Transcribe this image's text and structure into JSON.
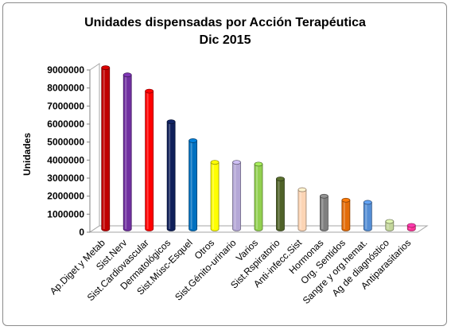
{
  "chart_data": {
    "type": "bar",
    "title": "Unidades dispensadas por Acción Terapéutica",
    "subtitle": "Dic 2015",
    "xlabel": "",
    "ylabel": "Unidades",
    "ylim": [
      0,
      9000000
    ],
    "yticks": [
      "0",
      "1000000",
      "2000000",
      "3000000",
      "4000000",
      "5000000",
      "6000000",
      "7000000",
      "8000000",
      "9000000"
    ],
    "grid": false,
    "legend": "none",
    "categories": [
      "Ap.Diget y Metab",
      "Sist.Nerv",
      "Sist.Cardiovascular",
      "Dermatológicos",
      "Sist.Músc-Esquel",
      "Otros",
      "Sist.Génito-urinario",
      "Varios",
      "Sist.Rspiratorio",
      "Anti-infecc.Sist",
      "Hormonas",
      "Org. Sentidos",
      "Sangre y org.hemat.",
      "Ag de diagnóstico",
      "Antiparasitarios"
    ],
    "values": [
      8950000,
      8550000,
      7650000,
      5950000,
      4900000,
      3700000,
      3700000,
      3600000,
      2780000,
      2180000,
      1820000,
      1600000,
      1480000,
      420000,
      200000
    ],
    "colors": [
      "#c00000",
      "#7030a0",
      "#ff0000",
      "#0f1f5a",
      "#0070c0",
      "#ffff00",
      "#b4a7d6",
      "#92d050",
      "#4f6228",
      "#fcd5b5",
      "#7f7f7f",
      "#e36c09",
      "#558ed5",
      "#c3d69b",
      "#ff3399"
    ]
  }
}
